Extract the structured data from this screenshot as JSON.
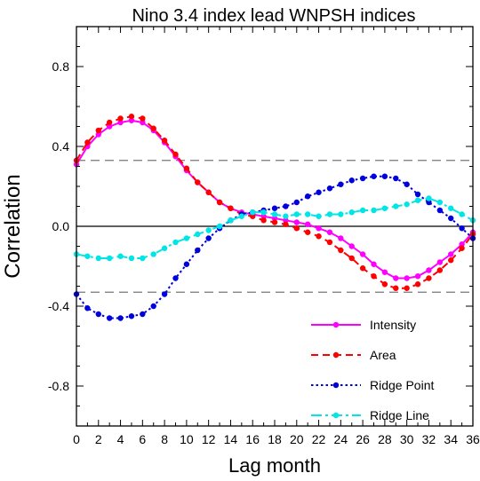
{
  "chart_data": {
    "type": "line",
    "title": "Nino 3.4 index lead WNPSH indices",
    "xlabel": "Lag month",
    "ylabel": "Correlation",
    "xlim": [
      0,
      36
    ],
    "ylim": [
      -1.0,
      1.0
    ],
    "xticks": [
      "0",
      "2",
      "4",
      "6",
      "8",
      "10",
      "12",
      "14",
      "16",
      "18",
      "20",
      "22",
      "24",
      "26",
      "28",
      "30",
      "32",
      "34",
      "36"
    ],
    "yticks": [
      "0.8",
      "0.4",
      "0.0",
      "-0.4",
      "-0.8"
    ],
    "ytick_values": [
      0.8,
      0.4,
      0.0,
      -0.4,
      -0.8
    ],
    "reference_lines": [
      {
        "y": 0.33,
        "style": "dashed",
        "color": "#777777"
      },
      {
        "y": -0.33,
        "style": "dashed",
        "color": "#777777"
      },
      {
        "y": 0.0,
        "style": "solid",
        "color": "#000000"
      }
    ],
    "legend_position": "bottom-right",
    "x": [
      0,
      1,
      2,
      3,
      4,
      5,
      6,
      7,
      8,
      9,
      10,
      11,
      12,
      13,
      14,
      15,
      16,
      17,
      18,
      19,
      20,
      21,
      22,
      23,
      24,
      25,
      26,
      27,
      28,
      29,
      30,
      31,
      32,
      33,
      34,
      35,
      36
    ],
    "series": [
      {
        "name": "Intensity",
        "color": "#ff00ff",
        "dash": "solid",
        "values": [
          0.31,
          0.4,
          0.46,
          0.5,
          0.52,
          0.53,
          0.52,
          0.48,
          0.42,
          0.35,
          0.28,
          0.22,
          0.17,
          0.12,
          0.09,
          0.07,
          0.06,
          0.05,
          0.04,
          0.03,
          0.02,
          0.01,
          -0.01,
          -0.03,
          -0.06,
          -0.1,
          -0.14,
          -0.19,
          -0.23,
          -0.26,
          -0.26,
          -0.25,
          -0.22,
          -0.18,
          -0.14,
          -0.09,
          -0.03
        ]
      },
      {
        "name": "Area",
        "color": "#ff0000",
        "dash": "dashed",
        "values": [
          0.33,
          0.42,
          0.48,
          0.52,
          0.54,
          0.55,
          0.54,
          0.49,
          0.43,
          0.36,
          0.29,
          0.22,
          0.17,
          0.12,
          0.09,
          0.06,
          0.05,
          0.03,
          0.02,
          0.01,
          -0.01,
          -0.03,
          -0.05,
          -0.08,
          -0.12,
          -0.16,
          -0.21,
          -0.25,
          -0.29,
          -0.31,
          -0.31,
          -0.29,
          -0.26,
          -0.22,
          -0.17,
          -0.11,
          -0.04
        ]
      },
      {
        "name": "Ridge Point",
        "color": "#0000dd",
        "dash": "dotted",
        "values": [
          -0.34,
          -0.41,
          -0.44,
          -0.46,
          -0.46,
          -0.45,
          -0.44,
          -0.4,
          -0.34,
          -0.26,
          -0.19,
          -0.12,
          -0.06,
          -0.01,
          0.03,
          0.06,
          0.07,
          0.08,
          0.09,
          0.1,
          0.12,
          0.15,
          0.17,
          0.19,
          0.21,
          0.23,
          0.24,
          0.25,
          0.25,
          0.24,
          0.21,
          0.16,
          0.12,
          0.08,
          0.04,
          -0.01,
          -0.06
        ]
      },
      {
        "name": "Ridge Line",
        "color": "#00e5e5",
        "dash": "dashdot",
        "values": [
          -0.14,
          -0.15,
          -0.16,
          -0.16,
          -0.15,
          -0.16,
          -0.16,
          -0.14,
          -0.11,
          -0.08,
          -0.06,
          -0.04,
          -0.02,
          0.0,
          0.03,
          0.05,
          0.07,
          0.07,
          0.06,
          0.05,
          0.06,
          0.06,
          0.05,
          0.06,
          0.06,
          0.07,
          0.08,
          0.08,
          0.09,
          0.1,
          0.11,
          0.13,
          0.14,
          0.12,
          0.09,
          0.06,
          0.03
        ]
      }
    ]
  }
}
